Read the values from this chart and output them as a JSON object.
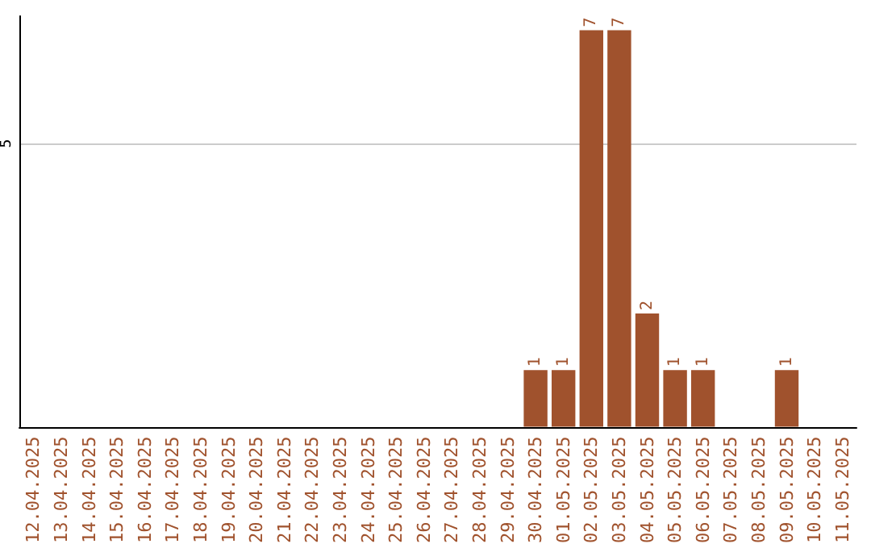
{
  "chart_data": {
    "type": "bar",
    "categories": [
      "12.04.2025",
      "13.04.2025",
      "14.04.2025",
      "15.04.2025",
      "16.04.2025",
      "17.04.2025",
      "18.04.2025",
      "19.04.2025",
      "20.04.2025",
      "21.04.2025",
      "22.04.2025",
      "23.04.2025",
      "24.04.2025",
      "25.04.2025",
      "26.04.2025",
      "27.04.2025",
      "28.04.2025",
      "29.04.2025",
      "30.04.2025",
      "01.05.2025",
      "02.05.2025",
      "03.05.2025",
      "04.05.2025",
      "05.05.2025",
      "06.05.2025",
      "07.05.2025",
      "08.05.2025",
      "09.05.2025",
      "10.05.2025",
      "11.05.2025"
    ],
    "values": [
      null,
      null,
      null,
      null,
      null,
      null,
      null,
      null,
      null,
      null,
      null,
      null,
      null,
      null,
      null,
      null,
      null,
      null,
      1,
      1,
      7,
      7,
      2,
      1,
      1,
      null,
      null,
      1,
      null,
      null
    ],
    "color": "#a0522d",
    "ylim": [
      0,
      7.25
    ],
    "yticks": [
      5
    ],
    "grid": "y",
    "data_labels": true
  }
}
